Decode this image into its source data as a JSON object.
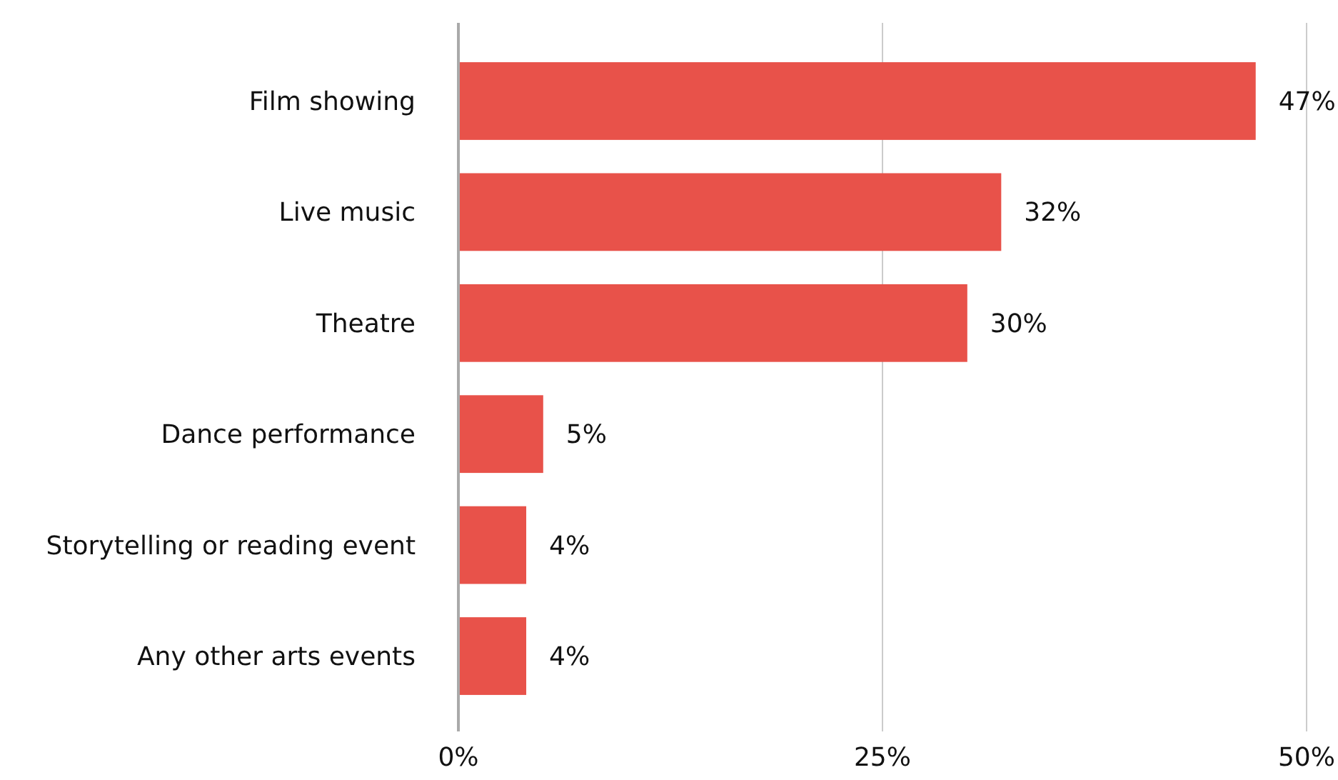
{
  "chart_data": {
    "type": "bar",
    "orientation": "horizontal",
    "categories": [
      "Film showing",
      "Live music",
      "Theatre",
      "Dance performance",
      "Storytelling or reading event",
      "Any other arts events"
    ],
    "values": [
      47,
      32,
      30,
      5,
      4,
      4
    ],
    "color": "#e8524a",
    "value_labels": [
      "47%",
      "32%",
      "30%",
      "5%",
      "4%",
      "4%"
    ],
    "xlim": [
      0,
      50
    ],
    "xticks": [
      {
        "value": 0,
        "label": "0%"
      },
      {
        "value": 25,
        "label": "25%"
      },
      {
        "value": 50,
        "label": "50%"
      }
    ],
    "grid": "x"
  }
}
